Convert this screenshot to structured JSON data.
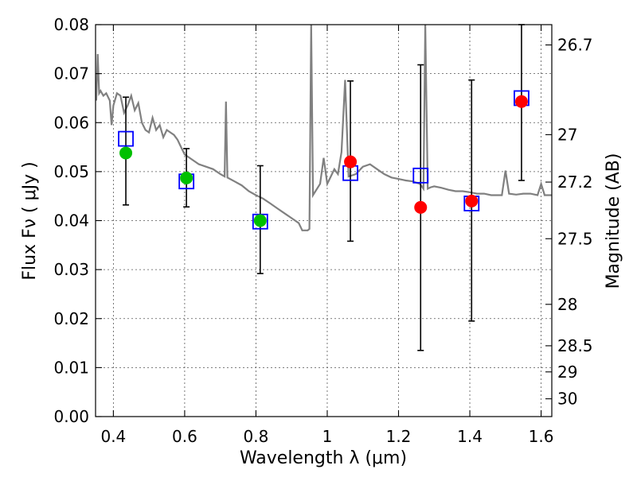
{
  "chart_data": {
    "type": "scatter",
    "xlabel": "Wavelength  λ (μm)",
    "ylabel_left": "Flux  Fν  ( μJy )",
    "ylabel_right": "Magnitude (AB)",
    "xlim": [
      0.35,
      1.63
    ],
    "ylim": [
      0.0,
      0.08
    ],
    "grid": true,
    "x_ticks": [
      {
        "value": 0.4,
        "label": "0.4"
      },
      {
        "value": 0.6,
        "label": "0.6"
      },
      {
        "value": 0.8,
        "label": "0.8"
      },
      {
        "value": 1.0,
        "label": "1"
      },
      {
        "value": 1.2,
        "label": "1.2"
      },
      {
        "value": 1.4,
        "label": "1.4"
      },
      {
        "value": 1.6,
        "label": "1.6"
      }
    ],
    "y_ticks": [
      {
        "value": 0.0,
        "label": "0.00"
      },
      {
        "value": 0.01,
        "label": "0.01"
      },
      {
        "value": 0.02,
        "label": "0.02"
      },
      {
        "value": 0.03,
        "label": "0.03"
      },
      {
        "value": 0.04,
        "label": "0.04"
      },
      {
        "value": 0.05,
        "label": "0.05"
      },
      {
        "value": 0.06,
        "label": "0.06"
      },
      {
        "value": 0.07,
        "label": "0.07"
      },
      {
        "value": 0.08,
        "label": "0.08"
      }
    ],
    "mag_ticks": [
      "26.7",
      "27",
      "27.2",
      "27.5",
      "28",
      "28.5",
      "29",
      "30"
    ],
    "model_spectrum": {
      "color": "#808080",
      "points": [
        [
          0.352,
          0.0645
        ],
        [
          0.356,
          0.074
        ],
        [
          0.36,
          0.066
        ],
        [
          0.364,
          0.0665
        ],
        [
          0.372,
          0.0655
        ],
        [
          0.38,
          0.066
        ],
        [
          0.39,
          0.0645
        ],
        [
          0.395,
          0.0595
        ],
        [
          0.4,
          0.0635
        ],
        [
          0.41,
          0.066
        ],
        [
          0.42,
          0.0655
        ],
        [
          0.43,
          0.062
        ],
        [
          0.44,
          0.0635
        ],
        [
          0.45,
          0.0655
        ],
        [
          0.46,
          0.0625
        ],
        [
          0.47,
          0.064
        ],
        [
          0.48,
          0.06
        ],
        [
          0.49,
          0.0585
        ],
        [
          0.5,
          0.058
        ],
        [
          0.51,
          0.061
        ],
        [
          0.52,
          0.0585
        ],
        [
          0.53,
          0.0595
        ],
        [
          0.54,
          0.057
        ],
        [
          0.55,
          0.0585
        ],
        [
          0.56,
          0.058
        ],
        [
          0.57,
          0.0575
        ],
        [
          0.58,
          0.0565
        ],
        [
          0.59,
          0.055
        ],
        [
          0.6,
          0.0535
        ],
        [
          0.62,
          0.0525
        ],
        [
          0.64,
          0.0515
        ],
        [
          0.66,
          0.051
        ],
        [
          0.68,
          0.0505
        ],
        [
          0.7,
          0.0495
        ],
        [
          0.712,
          0.049
        ],
        [
          0.716,
          0.0643
        ],
        [
          0.72,
          0.0488
        ],
        [
          0.74,
          0.048
        ],
        [
          0.76,
          0.0472
        ],
        [
          0.78,
          0.046
        ],
        [
          0.8,
          0.0452
        ],
        [
          0.82,
          0.0445
        ],
        [
          0.84,
          0.0435
        ],
        [
          0.86,
          0.0425
        ],
        [
          0.88,
          0.0415
        ],
        [
          0.9,
          0.0405
        ],
        [
          0.92,
          0.0395
        ],
        [
          0.93,
          0.038
        ],
        [
          0.945,
          0.038
        ],
        [
          0.95,
          0.0383
        ],
        [
          0.955,
          0.0802
        ],
        [
          0.96,
          0.0452
        ],
        [
          0.98,
          0.0475
        ],
        [
          0.99,
          0.0528
        ],
        [
          1.0,
          0.0475
        ],
        [
          1.01,
          0.049
        ],
        [
          1.02,
          0.0505
        ],
        [
          1.03,
          0.0495
        ],
        [
          1.04,
          0.054
        ],
        [
          1.05,
          0.0687
        ],
        [
          1.06,
          0.049
        ],
        [
          1.08,
          0.0495
        ],
        [
          1.1,
          0.051
        ],
        [
          1.12,
          0.0515
        ],
        [
          1.14,
          0.0505
        ],
        [
          1.16,
          0.0495
        ],
        [
          1.18,
          0.0488
        ],
        [
          1.2,
          0.0485
        ],
        [
          1.22,
          0.0482
        ],
        [
          1.24,
          0.048
        ],
        [
          1.26,
          0.0475
        ],
        [
          1.27,
          0.0465
        ],
        [
          1.275,
          0.0802
        ],
        [
          1.282,
          0.0465
        ],
        [
          1.29,
          0.0468
        ],
        [
          1.3,
          0.047
        ],
        [
          1.32,
          0.0467
        ],
        [
          1.34,
          0.0463
        ],
        [
          1.36,
          0.046
        ],
        [
          1.38,
          0.046
        ],
        [
          1.4,
          0.0458
        ],
        [
          1.42,
          0.0455
        ],
        [
          1.44,
          0.0455
        ],
        [
          1.46,
          0.0452
        ],
        [
          1.48,
          0.0452
        ],
        [
          1.49,
          0.0452
        ],
        [
          1.5,
          0.0502
        ],
        [
          1.51,
          0.0455
        ],
        [
          1.53,
          0.0453
        ],
        [
          1.55,
          0.0455
        ],
        [
          1.57,
          0.0455
        ],
        [
          1.59,
          0.0452
        ],
        [
          1.6,
          0.0475
        ],
        [
          1.61,
          0.0452
        ],
        [
          1.63,
          0.0452
        ]
      ]
    },
    "model_photometry": {
      "marker": "open-square",
      "color": "#0000ff",
      "points": [
        [
          0.435,
          0.0567
        ],
        [
          0.605,
          0.048
        ],
        [
          0.812,
          0.0398
        ],
        [
          1.065,
          0.0497
        ],
        [
          1.262,
          0.0492
        ],
        [
          1.405,
          0.0435
        ],
        [
          1.545,
          0.065
        ]
      ]
    },
    "observed_photometry": [
      {
        "x": 0.435,
        "y": 0.0538,
        "err_low": 0.0432,
        "err_high": 0.0652,
        "color": "#00c000"
      },
      {
        "x": 0.605,
        "y": 0.0487,
        "err_low": 0.0428,
        "err_high": 0.0547,
        "color": "#00c000"
      },
      {
        "x": 0.812,
        "y": 0.04,
        "err_low": 0.0292,
        "err_high": 0.0512,
        "color": "#00c000"
      },
      {
        "x": 1.065,
        "y": 0.052,
        "err_low": 0.0358,
        "err_high": 0.0685,
        "color": "#ff0000"
      },
      {
        "x": 1.262,
        "y": 0.0427,
        "err_low": 0.0135,
        "err_high": 0.0718,
        "color": "#ff0000"
      },
      {
        "x": 1.405,
        "y": 0.044,
        "err_low": 0.0195,
        "err_high": 0.0687,
        "color": "#ff0000"
      },
      {
        "x": 1.545,
        "y": 0.0643,
        "err_low": 0.0482,
        "err_high": 0.0805,
        "color": "#ff0000"
      }
    ]
  }
}
